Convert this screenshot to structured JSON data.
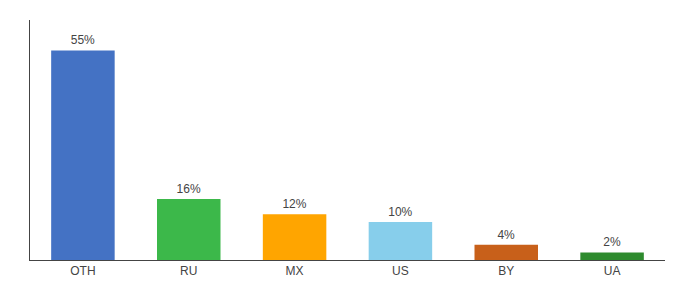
{
  "chart_data": {
    "type": "bar",
    "categories": [
      "OTH",
      "RU",
      "MX",
      "US",
      "BY",
      "UA"
    ],
    "values": [
      55,
      16,
      12,
      10,
      4,
      2
    ],
    "value_labels": [
      "55%",
      "16%",
      "12%",
      "10%",
      "4%",
      "2%"
    ],
    "colors": [
      "#4472c4",
      "#3cb84a",
      "#ffa500",
      "#87ceeb",
      "#c8601a",
      "#2e8b2e"
    ],
    "ylim": [
      0,
      63
    ],
    "data_labels": true,
    "tick_labels": "x",
    "grid": false
  }
}
